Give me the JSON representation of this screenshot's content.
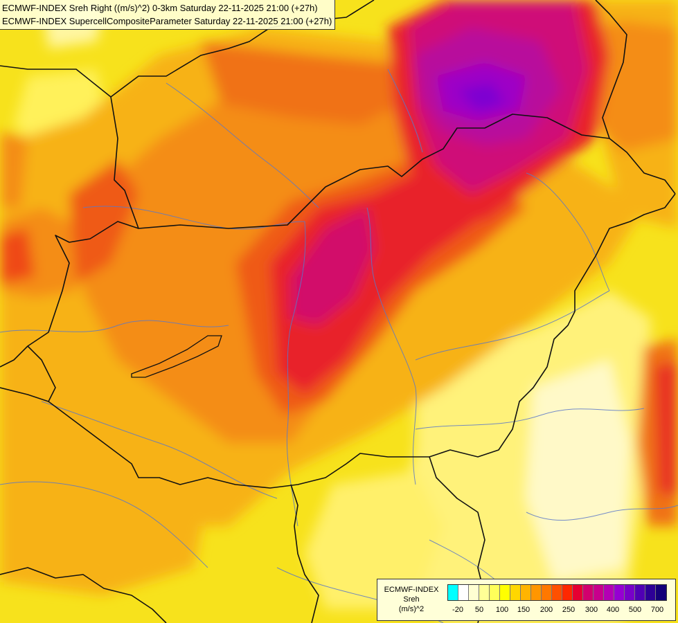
{
  "header": {
    "line1": "ECMWF-INDEX Sreh Right ((m/s)^2) 0-3km Saturday 22-11-2025 21:00 (+27h)",
    "line2": "ECMWF-INDEX SupercellCompositeParameter Saturday 22-11-2025 21:00 (+27h)"
  },
  "legend": {
    "title_line1": "ECMWF-INDEX",
    "title_line2": "Sreh",
    "title_line3": "(m/s)^2",
    "colors": [
      "#00ffff",
      "#ffffff",
      "#ffffd2",
      "#ffff96",
      "#ffff5a",
      "#ffff00",
      "#ffd700",
      "#ffb400",
      "#ff9600",
      "#ff7800",
      "#ff5000",
      "#ff2800",
      "#e60032",
      "#d2006e",
      "#c8008c",
      "#b400b4",
      "#9600d2",
      "#7800c8",
      "#5000b4",
      "#2d0096",
      "#140078"
    ],
    "ticks": [
      "-20",
      "50",
      "100",
      "150",
      "200",
      "250",
      "300",
      "400",
      "500",
      "700"
    ]
  },
  "map": {
    "region": "Hungary and surroundings",
    "field": "Storm-relative helicity 0-3 km",
    "background_color": "#f5e11e"
  }
}
